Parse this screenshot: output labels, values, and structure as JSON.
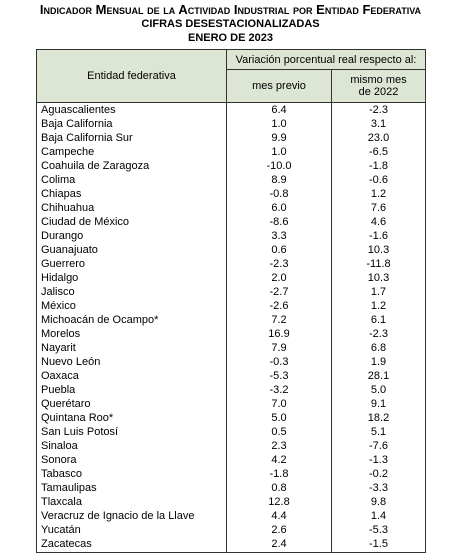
{
  "header": {
    "title": "Indicador Mensual de la Actividad Industrial por Entidad Federativa",
    "subtitle": "CIFRAS DESESTACIONALIZADAS",
    "date": "ENERO DE 2023"
  },
  "table": {
    "entity_header": "Entidad federativa",
    "group_header": "Variación porcentual real respecto al:",
    "columns": [
      "mes previo",
      "mismo mes de 2022"
    ],
    "rows": [
      [
        "Aguascalientes",
        "6.4",
        "-2.3"
      ],
      [
        "Baja California",
        "1.0",
        "3.1"
      ],
      [
        "Baja California Sur",
        "9.9",
        "23.0"
      ],
      [
        "Campeche",
        "1.0",
        "-6.5"
      ],
      [
        "Coahuila de Zaragoza",
        "-10.0",
        "-1.8"
      ],
      [
        "Colima",
        "8.9",
        "-0.6"
      ],
      [
        "Chiapas",
        "-0.8",
        "1.2"
      ],
      [
        "Chihuahua",
        "6.0",
        "7.6"
      ],
      [
        "Ciudad de México",
        "-8.6",
        "4.6"
      ],
      [
        "Durango",
        "3.3",
        "-1.6"
      ],
      [
        "Guanajuato",
        "0.6",
        "10.3"
      ],
      [
        "Guerrero",
        "-2.3",
        "-11.8"
      ],
      [
        "Hidalgo",
        "2.0",
        "10.3"
      ],
      [
        "Jalisco",
        "-2.7",
        "1.7"
      ],
      [
        "México",
        "-2.6",
        "1.2"
      ],
      [
        "Michoacán de Ocampo*",
        "7.2",
        "6.1"
      ],
      [
        "Morelos",
        "16.9",
        "-2.3"
      ],
      [
        "Nayarit",
        "7.9",
        "6.8"
      ],
      [
        "Nuevo León",
        "-0.3",
        "1.9"
      ],
      [
        "Oaxaca",
        "-5.3",
        "28.1"
      ],
      [
        "Puebla",
        "-3.2",
        "5.0"
      ],
      [
        "Querétaro",
        "7.0",
        "9.1"
      ],
      [
        "Quintana Roo*",
        "5.0",
        "18.2"
      ],
      [
        "San Luis Potosí",
        "0.5",
        "5.1"
      ],
      [
        "Sinaloa",
        "2.3",
        "-7.6"
      ],
      [
        "Sonora",
        "4.2",
        "-1.3"
      ],
      [
        "Tabasco",
        "-1.8",
        "-0.2"
      ],
      [
        "Tamaulipas",
        "0.8",
        "-3.3"
      ],
      [
        "Tlaxcala",
        "12.8",
        "9.8"
      ],
      [
        "Veracruz de Ignacio de la Llave",
        "4.4",
        "1.4"
      ],
      [
        "Yucatán",
        "2.6",
        "-5.3"
      ],
      [
        "Zacatecas",
        "2.4",
        "-1.5"
      ]
    ]
  }
}
